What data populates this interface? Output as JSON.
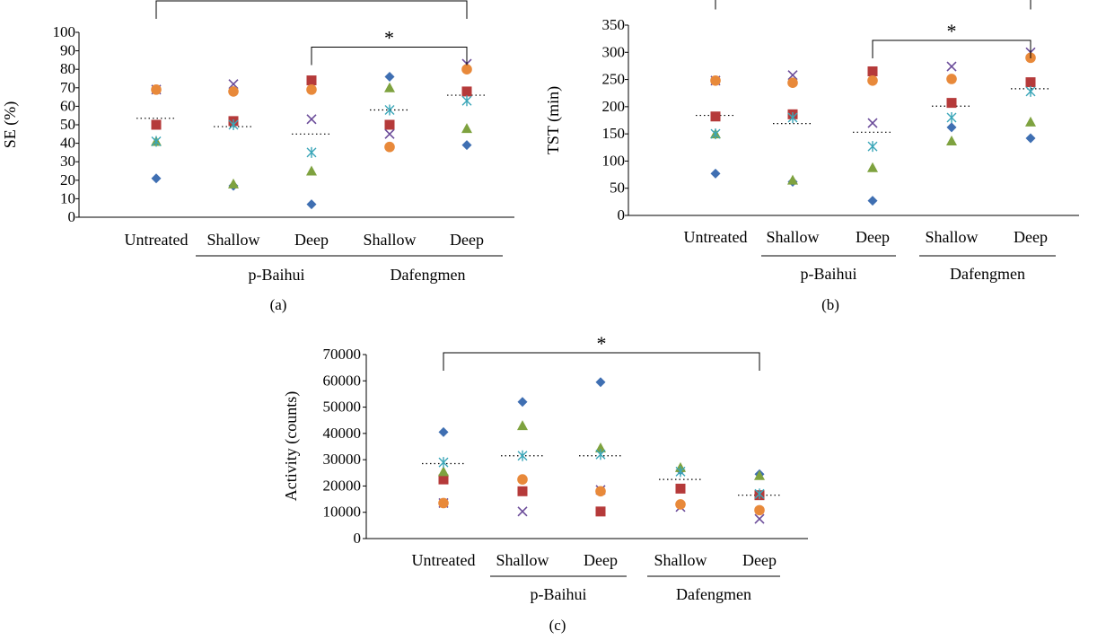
{
  "colors": {
    "diamond": "#3f6fb2",
    "square": "#b53a3a",
    "triangle": "#7ea23f",
    "x": "#6b4c9a",
    "star": "#3aa6b8",
    "circle": "#e8893a",
    "mean": "#000000"
  },
  "chart_data": [
    {
      "type": "scatter",
      "panel_label": "(a)",
      "ylabel": "SE (%)",
      "ylim": [
        0,
        100
      ],
      "yticks": [
        "0",
        "10",
        "20",
        "30",
        "40",
        "50",
        "60",
        "70",
        "80",
        "90",
        "100"
      ],
      "categories": [
        "Untreated",
        "Shallow",
        "Deep",
        "Shallow",
        "Deep"
      ],
      "groups": [
        {
          "label": "p-Baihui",
          "categories": [
            1,
            2
          ]
        },
        {
          "label": "Dafengmen",
          "categories": [
            3,
            4
          ]
        }
      ],
      "series": [
        {
          "marker": "diamond",
          "values": [
            21,
            17,
            7,
            76,
            39
          ]
        },
        {
          "marker": "square",
          "values": [
            50,
            52,
            74,
            50,
            68
          ]
        },
        {
          "marker": "triangle",
          "values": [
            41,
            18,
            25,
            70,
            48
          ]
        },
        {
          "marker": "x",
          "values": [
            69,
            72,
            53,
            45,
            83
          ]
        },
        {
          "marker": "star",
          "values": [
            41,
            50,
            35,
            58,
            63
          ]
        },
        {
          "marker": "circle",
          "values": [
            69,
            68,
            69,
            38,
            80
          ]
        }
      ],
      "means": [
        53.5,
        49,
        45,
        58,
        66
      ],
      "significance": [
        {
          "from": 0,
          "to": 4,
          "label": "**",
          "y": 117
        },
        {
          "from": 2,
          "to": 4,
          "label": "*",
          "y": 92
        }
      ]
    },
    {
      "type": "scatter",
      "panel_label": "(b)",
      "ylabel": "TST (min)",
      "ylim": [
        0,
        350
      ],
      "yticks": [
        "0",
        "50",
        "100",
        "150",
        "200",
        "250",
        "300",
        "350"
      ],
      "categories": [
        "Untreated",
        "Shallow",
        "Deep",
        "Shallow",
        "Deep"
      ],
      "groups": [
        {
          "label": "p-Baihui",
          "categories": [
            1,
            2
          ]
        },
        {
          "label": "Dafengmen",
          "categories": [
            3,
            4
          ]
        }
      ],
      "series": [
        {
          "marker": "diamond",
          "values": [
            77,
            62,
            27,
            162,
            142
          ]
        },
        {
          "marker": "square",
          "values": [
            182,
            186,
            265,
            207,
            245
          ]
        },
        {
          "marker": "triangle",
          "values": [
            150,
            65,
            88,
            137,
            172
          ]
        },
        {
          "marker": "x",
          "values": [
            248,
            258,
            170,
            274,
            300
          ]
        },
        {
          "marker": "star",
          "values": [
            150,
            180,
            127,
            180,
            228
          ]
        },
        {
          "marker": "circle",
          "values": [
            248,
            244,
            248,
            251,
            290
          ]
        }
      ],
      "means": [
        184,
        169,
        153,
        201,
        233
      ],
      "significance": [
        {
          "from": 0,
          "to": 4,
          "label": "**",
          "y": 412
        },
        {
          "from": 2,
          "to": 4,
          "label": "*",
          "y": 322
        }
      ]
    },
    {
      "type": "scatter",
      "panel_label": "(c)",
      "ylabel": "Activity (counts)",
      "ylim": [
        0,
        70000
      ],
      "yticks": [
        "0",
        "10000",
        "20000",
        "30000",
        "40000",
        "50000",
        "60000",
        "70000"
      ],
      "categories": [
        "Untreated",
        "Shallow",
        "Deep",
        "Shallow",
        "Deep"
      ],
      "groups": [
        {
          "label": "p-Baihui",
          "categories": [
            1,
            2
          ]
        },
        {
          "label": "Dafengmen",
          "categories": [
            3,
            4
          ]
        }
      ],
      "series": [
        {
          "marker": "diamond",
          "values": [
            40500,
            52000,
            59500,
            26000,
            24500
          ]
        },
        {
          "marker": "square",
          "values": [
            22500,
            18000,
            10300,
            19000,
            16500
          ]
        },
        {
          "marker": "triangle",
          "values": [
            25500,
            43000,
            34500,
            27000,
            24000
          ]
        },
        {
          "marker": "x",
          "values": [
            13500,
            10300,
            18500,
            12000,
            7500
          ]
        },
        {
          "marker": "star",
          "values": [
            29000,
            31500,
            32000,
            25500,
            17000
          ]
        },
        {
          "marker": "circle",
          "values": [
            13500,
            22500,
            18000,
            13000,
            10800
          ]
        }
      ],
      "means": [
        28500,
        31500,
        31500,
        22500,
        16500
      ],
      "significance": [
        {
          "from": 0,
          "to": 4,
          "label": "*",
          "y": 70700
        }
      ]
    }
  ]
}
